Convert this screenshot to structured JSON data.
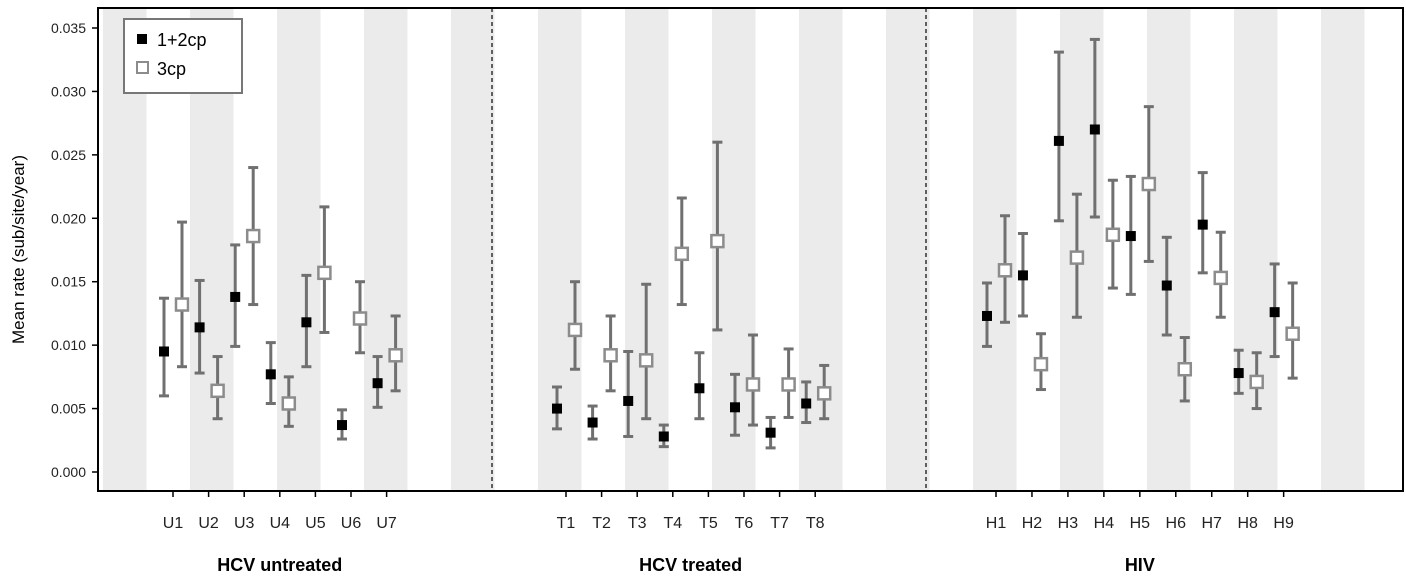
{
  "chart_data": {
    "type": "scatter",
    "ylabel": "Mean rate (sub/site/year)",
    "ylim": [
      0,
      0.036
    ],
    "yticks": [
      "0.000",
      "0.005",
      "0.010",
      "0.015",
      "0.020",
      "0.025",
      "0.030",
      "0.035"
    ],
    "legend": {
      "position": "top-left",
      "entries": [
        {
          "label": "1+2cp",
          "marker": "filled-square",
          "color": "#000000"
        },
        {
          "label": "3cp",
          "marker": "open-square",
          "color": "#8c8c8c"
        }
      ]
    },
    "colors": {
      "errorbar": "#707070",
      "stripe": "#ebebeb",
      "filled": "#000000",
      "open_stroke": "#8c8c8c"
    },
    "groups": [
      {
        "label": "HCV untreated",
        "categories": [
          "U1",
          "U2",
          "U3",
          "U4",
          "U5",
          "U6",
          "U7"
        ],
        "series": [
          {
            "name": "1+2cp",
            "values": [
              0.0095,
              0.0114,
              0.0138,
              0.0077,
              0.0118,
              0.0037,
              0.007
            ],
            "lower": [
              0.006,
              0.0078,
              0.0099,
              0.0054,
              0.0083,
              0.0026,
              0.0051
            ],
            "upper": [
              0.0137,
              0.0151,
              0.0179,
              0.0102,
              0.0155,
              0.0049,
              0.0091
            ]
          },
          {
            "name": "3cp",
            "values": [
              0.0132,
              0.0064,
              0.0186,
              0.0054,
              0.0157,
              0.0121,
              0.0092
            ],
            "lower": [
              0.0083,
              0.0042,
              0.0132,
              0.0036,
              0.011,
              0.0094,
              0.0064
            ],
            "upper": [
              0.0197,
              0.0091,
              0.024,
              0.0075,
              0.0209,
              0.015,
              0.0123
            ]
          }
        ]
      },
      {
        "label": "HCV treated",
        "categories": [
          "T1",
          "T2",
          "T3",
          "T4",
          "T5",
          "T6",
          "T7",
          "T8"
        ],
        "series": [
          {
            "name": "1+2cp",
            "values": [
              0.005,
              0.0039,
              0.0056,
              0.0028,
              0.0066,
              0.0051,
              0.0031,
              0.0054
            ],
            "lower": [
              0.0034,
              0.0026,
              0.0028,
              0.002,
              0.0042,
              0.0029,
              0.0019,
              0.0039
            ],
            "upper": [
              0.0067,
              0.0052,
              0.0095,
              0.0037,
              0.0094,
              0.0077,
              0.0043,
              0.0071
            ]
          },
          {
            "name": "3cp",
            "values": [
              0.0112,
              0.0092,
              0.0088,
              0.0172,
              0.0182,
              0.0069,
              0.0069,
              0.0062
            ],
            "lower": [
              0.0081,
              0.0064,
              0.0042,
              0.0132,
              0.0112,
              0.0037,
              0.0043,
              0.0042
            ],
            "upper": [
              0.015,
              0.0123,
              0.0148,
              0.0216,
              0.026,
              0.0108,
              0.0097,
              0.0084
            ]
          }
        ]
      },
      {
        "label": "HIV",
        "categories": [
          "H1",
          "H2",
          "H3",
          "H4",
          "H5",
          "H6",
          "H7",
          "H8",
          "H9"
        ],
        "series": [
          {
            "name": "1+2cp",
            "values": [
              0.0123,
              0.0155,
              0.0261,
              0.027,
              0.0186,
              0.0147,
              0.0195,
              0.0078,
              0.0126
            ],
            "lower": [
              0.0099,
              0.0123,
              0.0198,
              0.0201,
              0.014,
              0.0108,
              0.0157,
              0.0062,
              0.0091
            ],
            "upper": [
              0.0149,
              0.0188,
              0.0331,
              0.0341,
              0.0233,
              0.0185,
              0.0236,
              0.0096,
              0.0164
            ]
          },
          {
            "name": "3cp",
            "values": [
              0.0159,
              0.0085,
              0.0169,
              0.0187,
              0.0227,
              0.0081,
              0.0153,
              0.0071,
              0.0109
            ],
            "lower": [
              0.0118,
              0.0065,
              0.0122,
              0.0145,
              0.0166,
              0.0056,
              0.0122,
              0.005,
              0.0074
            ],
            "upper": [
              0.0202,
              0.0109,
              0.0219,
              0.023,
              0.0288,
              0.0106,
              0.0189,
              0.0094,
              0.0149
            ]
          }
        ]
      }
    ]
  }
}
